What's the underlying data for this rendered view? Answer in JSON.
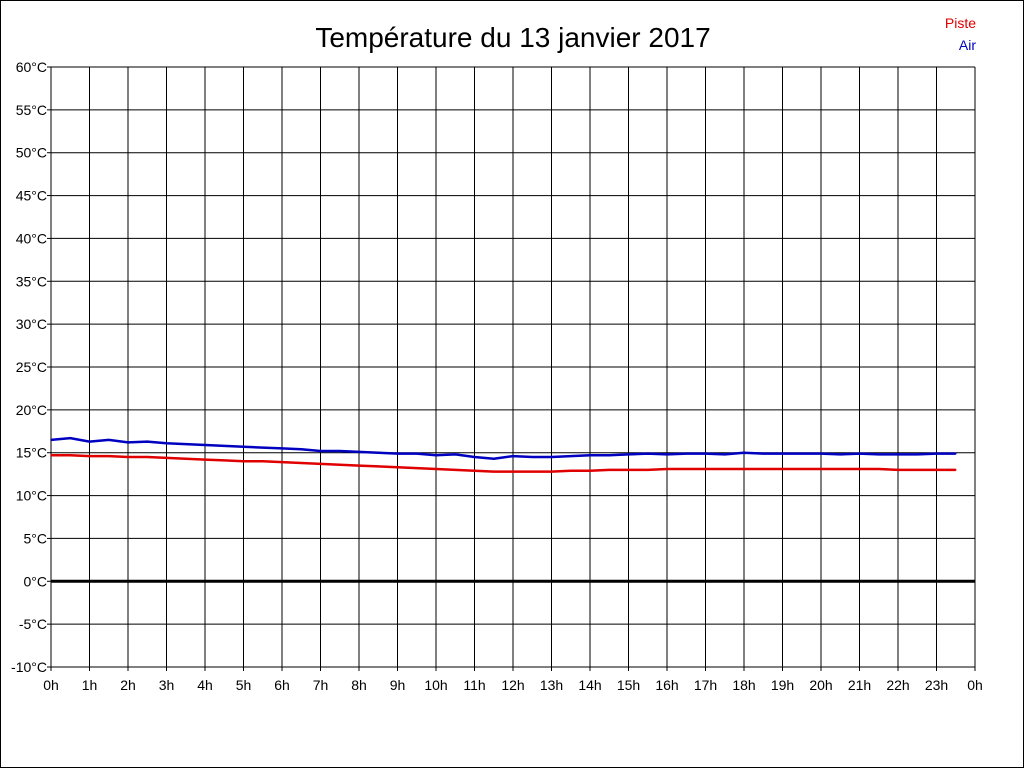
{
  "chart_data": {
    "type": "line",
    "title": "Température du 13 janvier 2017",
    "xlabel": "",
    "ylabel": "",
    "x_tick_labels": [
      "0h",
      "1h",
      "2h",
      "3h",
      "4h",
      "5h",
      "6h",
      "7h",
      "8h",
      "9h",
      "10h",
      "11h",
      "12h",
      "13h",
      "14h",
      "15h",
      "16h",
      "17h",
      "18h",
      "19h",
      "20h",
      "21h",
      "22h",
      "23h",
      "0h"
    ],
    "y_tick_labels": [
      "-10°C",
      "-5°C",
      "0°C",
      "5°C",
      "10°C",
      "15°C",
      "20°C",
      "25°C",
      "30°C",
      "35°C",
      "40°C",
      "45°C",
      "50°C",
      "55°C",
      "60°C"
    ],
    "xlim": [
      0,
      24
    ],
    "ylim": [
      -10,
      60
    ],
    "y_step": 5,
    "grid": true,
    "zero_line": true,
    "legend_position": "top-right",
    "x": [
      0,
      0.5,
      1,
      1.5,
      2,
      2.5,
      3,
      3.5,
      4,
      4.5,
      5,
      5.5,
      6,
      6.5,
      7,
      7.5,
      8,
      8.5,
      9,
      9.5,
      10,
      10.5,
      11,
      11.5,
      12,
      12.5,
      13,
      13.5,
      14,
      14.5,
      15,
      15.5,
      16,
      16.5,
      17,
      17.5,
      18,
      18.5,
      19,
      19.5,
      20,
      20.5,
      21,
      21.5,
      22,
      22.5,
      23,
      23.5
    ],
    "series": [
      {
        "name": "Piste",
        "color": "#e00000",
        "values": [
          14.7,
          14.7,
          14.6,
          14.6,
          14.5,
          14.5,
          14.4,
          14.3,
          14.2,
          14.1,
          14.0,
          14.0,
          13.9,
          13.8,
          13.7,
          13.6,
          13.5,
          13.4,
          13.3,
          13.2,
          13.1,
          13.0,
          12.9,
          12.8,
          12.8,
          12.8,
          12.8,
          12.9,
          12.9,
          13.0,
          13.0,
          13.0,
          13.1,
          13.1,
          13.1,
          13.1,
          13.1,
          13.1,
          13.1,
          13.1,
          13.1,
          13.1,
          13.1,
          13.1,
          13.0,
          13.0,
          13.0,
          13.0
        ]
      },
      {
        "name": "Air",
        "color": "#0000c0",
        "values": [
          16.5,
          16.7,
          16.3,
          16.5,
          16.2,
          16.3,
          16.1,
          16.0,
          15.9,
          15.8,
          15.7,
          15.6,
          15.5,
          15.4,
          15.2,
          15.2,
          15.1,
          15.0,
          14.9,
          14.9,
          14.7,
          14.8,
          14.5,
          14.3,
          14.6,
          14.5,
          14.5,
          14.6,
          14.7,
          14.7,
          14.8,
          14.9,
          14.8,
          14.9,
          14.9,
          14.8,
          15.0,
          14.9,
          14.9,
          14.9,
          14.9,
          14.8,
          14.9,
          14.8,
          14.8,
          14.8,
          14.9,
          14.9
        ]
      }
    ]
  }
}
